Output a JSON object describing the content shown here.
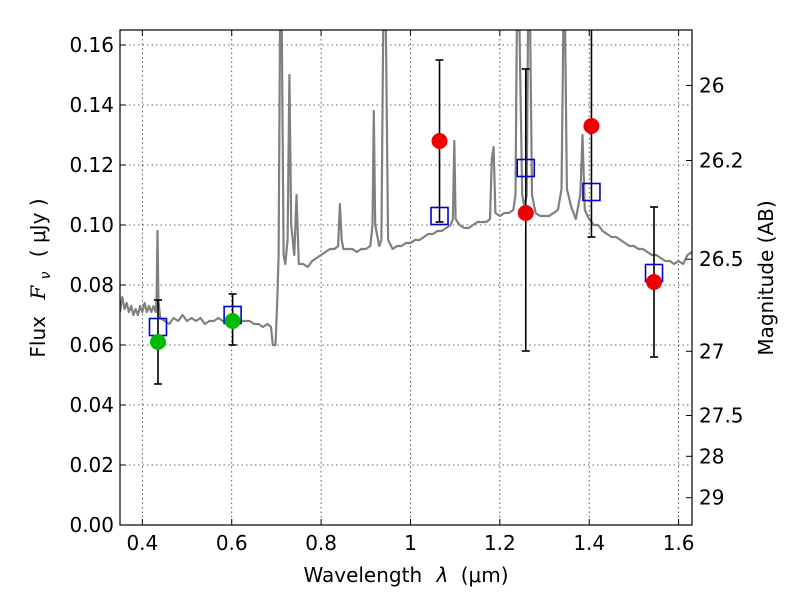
{
  "chart_data": {
    "type": "scatter",
    "xlabel_prefix": "Wavelength",
    "xlabel_var": "λ",
    "xlabel_unit": "(μm)",
    "ylabel_prefix": "Flux",
    "ylabel_var": "F",
    "ylabel_sub": "ν",
    "ylabel_unit": "( μJy )",
    "y2label": "Magnitude (AB)",
    "xlim": [
      0.35,
      1.63
    ],
    "ylim": [
      0.0,
      0.165
    ],
    "xticks": [
      0.4,
      0.6,
      0.8,
      1.0,
      1.2,
      1.4,
      1.6
    ],
    "xtick_labels": [
      "0.4",
      "0.6",
      "0.8",
      "1",
      "1.2",
      "1.4",
      "1.6"
    ],
    "yticks": [
      0.0,
      0.02,
      0.04,
      0.06,
      0.08,
      0.1,
      0.12,
      0.14,
      0.16
    ],
    "ytick_labels": [
      "0.00",
      "0.02",
      "0.04",
      "0.06",
      "0.08",
      "0.10",
      "0.12",
      "0.14",
      "0.16"
    ],
    "mag_ticks": [
      "26",
      "26.2",
      "26.5",
      "27",
      "27.5",
      "28",
      "29"
    ],
    "grid": true,
    "template_spectrum": {
      "color": "#808080",
      "points": [
        [
          0.35,
          0.071
        ],
        [
          0.355,
          0.076
        ],
        [
          0.36,
          0.072
        ],
        [
          0.365,
          0.074
        ],
        [
          0.37,
          0.071
        ],
        [
          0.375,
          0.073
        ],
        [
          0.38,
          0.07
        ],
        [
          0.385,
          0.072
        ],
        [
          0.39,
          0.07
        ],
        [
          0.395,
          0.073
        ],
        [
          0.4,
          0.071
        ],
        [
          0.405,
          0.074
        ],
        [
          0.41,
          0.071
        ],
        [
          0.415,
          0.073
        ],
        [
          0.42,
          0.071
        ],
        [
          0.425,
          0.073
        ],
        [
          0.43,
          0.071
        ],
        [
          0.432,
          0.075
        ],
        [
          0.434,
          0.098
        ],
        [
          0.436,
          0.075
        ],
        [
          0.44,
          0.069
        ],
        [
          0.45,
          0.068
        ],
        [
          0.46,
          0.067
        ],
        [
          0.47,
          0.069
        ],
        [
          0.48,
          0.068
        ],
        [
          0.49,
          0.07
        ],
        [
          0.5,
          0.068
        ],
        [
          0.51,
          0.069
        ],
        [
          0.52,
          0.068
        ],
        [
          0.53,
          0.069
        ],
        [
          0.54,
          0.067
        ],
        [
          0.55,
          0.068
        ],
        [
          0.56,
          0.068
        ],
        [
          0.57,
          0.069
        ],
        [
          0.58,
          0.068
        ],
        [
          0.59,
          0.068
        ],
        [
          0.6,
          0.068
        ],
        [
          0.61,
          0.068
        ],
        [
          0.62,
          0.068
        ],
        [
          0.63,
          0.068
        ],
        [
          0.64,
          0.068
        ],
        [
          0.65,
          0.067
        ],
        [
          0.66,
          0.067
        ],
        [
          0.67,
          0.066
        ],
        [
          0.68,
          0.067
        ],
        [
          0.688,
          0.066
        ],
        [
          0.692,
          0.06
        ],
        [
          0.698,
          0.06
        ],
        [
          0.702,
          0.075
        ],
        [
          0.705,
          0.09
        ],
        [
          0.708,
          0.165
        ],
        [
          0.712,
          0.165
        ],
        [
          0.716,
          0.09
        ],
        [
          0.72,
          0.087
        ],
        [
          0.725,
          0.095
        ],
        [
          0.729,
          0.15
        ],
        [
          0.733,
          0.1
        ],
        [
          0.74,
          0.09
        ],
        [
          0.745,
          0.11
        ],
        [
          0.75,
          0.087
        ],
        [
          0.76,
          0.087
        ],
        [
          0.77,
          0.086
        ],
        [
          0.78,
          0.088
        ],
        [
          0.79,
          0.089
        ],
        [
          0.8,
          0.09
        ],
        [
          0.81,
          0.091
        ],
        [
          0.82,
          0.092
        ],
        [
          0.83,
          0.092
        ],
        [
          0.838,
          0.093
        ],
        [
          0.842,
          0.107
        ],
        [
          0.846,
          0.095
        ],
        [
          0.85,
          0.092
        ],
        [
          0.86,
          0.092
        ],
        [
          0.87,
          0.092
        ],
        [
          0.88,
          0.091
        ],
        [
          0.89,
          0.092
        ],
        [
          0.9,
          0.092
        ],
        [
          0.91,
          0.093
        ],
        [
          0.915,
          0.1
        ],
        [
          0.918,
          0.138
        ],
        [
          0.921,
          0.1
        ],
        [
          0.93,
          0.093
        ],
        [
          0.935,
          0.095
        ],
        [
          0.939,
          0.165
        ],
        [
          0.945,
          0.165
        ],
        [
          0.95,
          0.095
        ],
        [
          0.96,
          0.092
        ],
        [
          0.97,
          0.093
        ],
        [
          0.98,
          0.093
        ],
        [
          0.99,
          0.094
        ],
        [
          1.0,
          0.094
        ],
        [
          1.01,
          0.095
        ],
        [
          1.02,
          0.095
        ],
        [
          1.03,
          0.096
        ],
        [
          1.04,
          0.097
        ],
        [
          1.05,
          0.097
        ],
        [
          1.06,
          0.098
        ],
        [
          1.07,
          0.098
        ],
        [
          1.08,
          0.099
        ],
        [
          1.09,
          0.1
        ],
        [
          1.095,
          0.102
        ],
        [
          1.098,
          0.128
        ],
        [
          1.101,
          0.102
        ],
        [
          1.11,
          0.1
        ],
        [
          1.12,
          0.099
        ],
        [
          1.13,
          0.099
        ],
        [
          1.14,
          0.1
        ],
        [
          1.15,
          0.101
        ],
        [
          1.16,
          0.101
        ],
        [
          1.17,
          0.101
        ],
        [
          1.178,
          0.102
        ],
        [
          1.182,
          0.122
        ],
        [
          1.186,
          0.126
        ],
        [
          1.19,
          0.104
        ],
        [
          1.2,
          0.103
        ],
        [
          1.21,
          0.104
        ],
        [
          1.22,
          0.104
        ],
        [
          1.23,
          0.105
        ],
        [
          1.235,
          0.11
        ],
        [
          1.238,
          0.165
        ],
        [
          1.244,
          0.165
        ],
        [
          1.25,
          0.11
        ],
        [
          1.255,
          0.106
        ],
        [
          1.26,
          0.11
        ],
        [
          1.263,
          0.165
        ],
        [
          1.268,
          0.165
        ],
        [
          1.272,
          0.11
        ],
        [
          1.28,
          0.104
        ],
        [
          1.29,
          0.103
        ],
        [
          1.3,
          0.103
        ],
        [
          1.31,
          0.103
        ],
        [
          1.32,
          0.104
        ],
        [
          1.33,
          0.105
        ],
        [
          1.338,
          0.112
        ],
        [
          1.342,
          0.165
        ],
        [
          1.346,
          0.165
        ],
        [
          1.35,
          0.112
        ],
        [
          1.36,
          0.106
        ],
        [
          1.37,
          0.102
        ],
        [
          1.38,
          0.11
        ],
        [
          1.385,
          0.13
        ],
        [
          1.39,
          0.105
        ],
        [
          1.4,
          0.102
        ],
        [
          1.41,
          0.1
        ],
        [
          1.42,
          0.1
        ],
        [
          1.43,
          0.098
        ],
        [
          1.44,
          0.097
        ],
        [
          1.45,
          0.096
        ],
        [
          1.46,
          0.096
        ],
        [
          1.47,
          0.095
        ],
        [
          1.48,
          0.094
        ],
        [
          1.49,
          0.093
        ],
        [
          1.5,
          0.093
        ],
        [
          1.51,
          0.092
        ],
        [
          1.52,
          0.092
        ],
        [
          1.53,
          0.091
        ],
        [
          1.54,
          0.09
        ],
        [
          1.55,
          0.09
        ],
        [
          1.56,
          0.089
        ],
        [
          1.57,
          0.088
        ],
        [
          1.58,
          0.088
        ],
        [
          1.59,
          0.087
        ],
        [
          1.6,
          0.088
        ],
        [
          1.61,
          0.087
        ],
        [
          1.62,
          0.09
        ],
        [
          1.63,
          0.091
        ]
      ]
    },
    "model_points": {
      "marker": "open-square",
      "color": "#0000cc",
      "points": [
        [
          0.435,
          0.066
        ],
        [
          0.602,
          0.07
        ],
        [
          1.065,
          0.103
        ],
        [
          1.258,
          0.119
        ],
        [
          1.405,
          0.111
        ],
        [
          1.545,
          0.084
        ]
      ]
    },
    "observations": [
      {
        "x": 0.435,
        "y": 0.061,
        "err_low": 0.047,
        "err_high": 0.075,
        "color": "#00bb00"
      },
      {
        "x": 0.602,
        "y": 0.068,
        "err_low": 0.06,
        "err_high": 0.077,
        "color": "#00bb00"
      },
      {
        "x": 1.065,
        "y": 0.128,
        "err_low": 0.101,
        "err_high": 0.155,
        "color": "#ee0000"
      },
      {
        "x": 1.258,
        "y": 0.104,
        "err_low": 0.058,
        "err_high": 0.152,
        "color": "#ee0000"
      },
      {
        "x": 1.405,
        "y": 0.133,
        "err_low": 0.096,
        "err_high": 0.17,
        "color": "#ee0000"
      },
      {
        "x": 1.545,
        "y": 0.081,
        "err_low": 0.056,
        "err_high": 0.106,
        "color": "#ee0000"
      }
    ]
  }
}
